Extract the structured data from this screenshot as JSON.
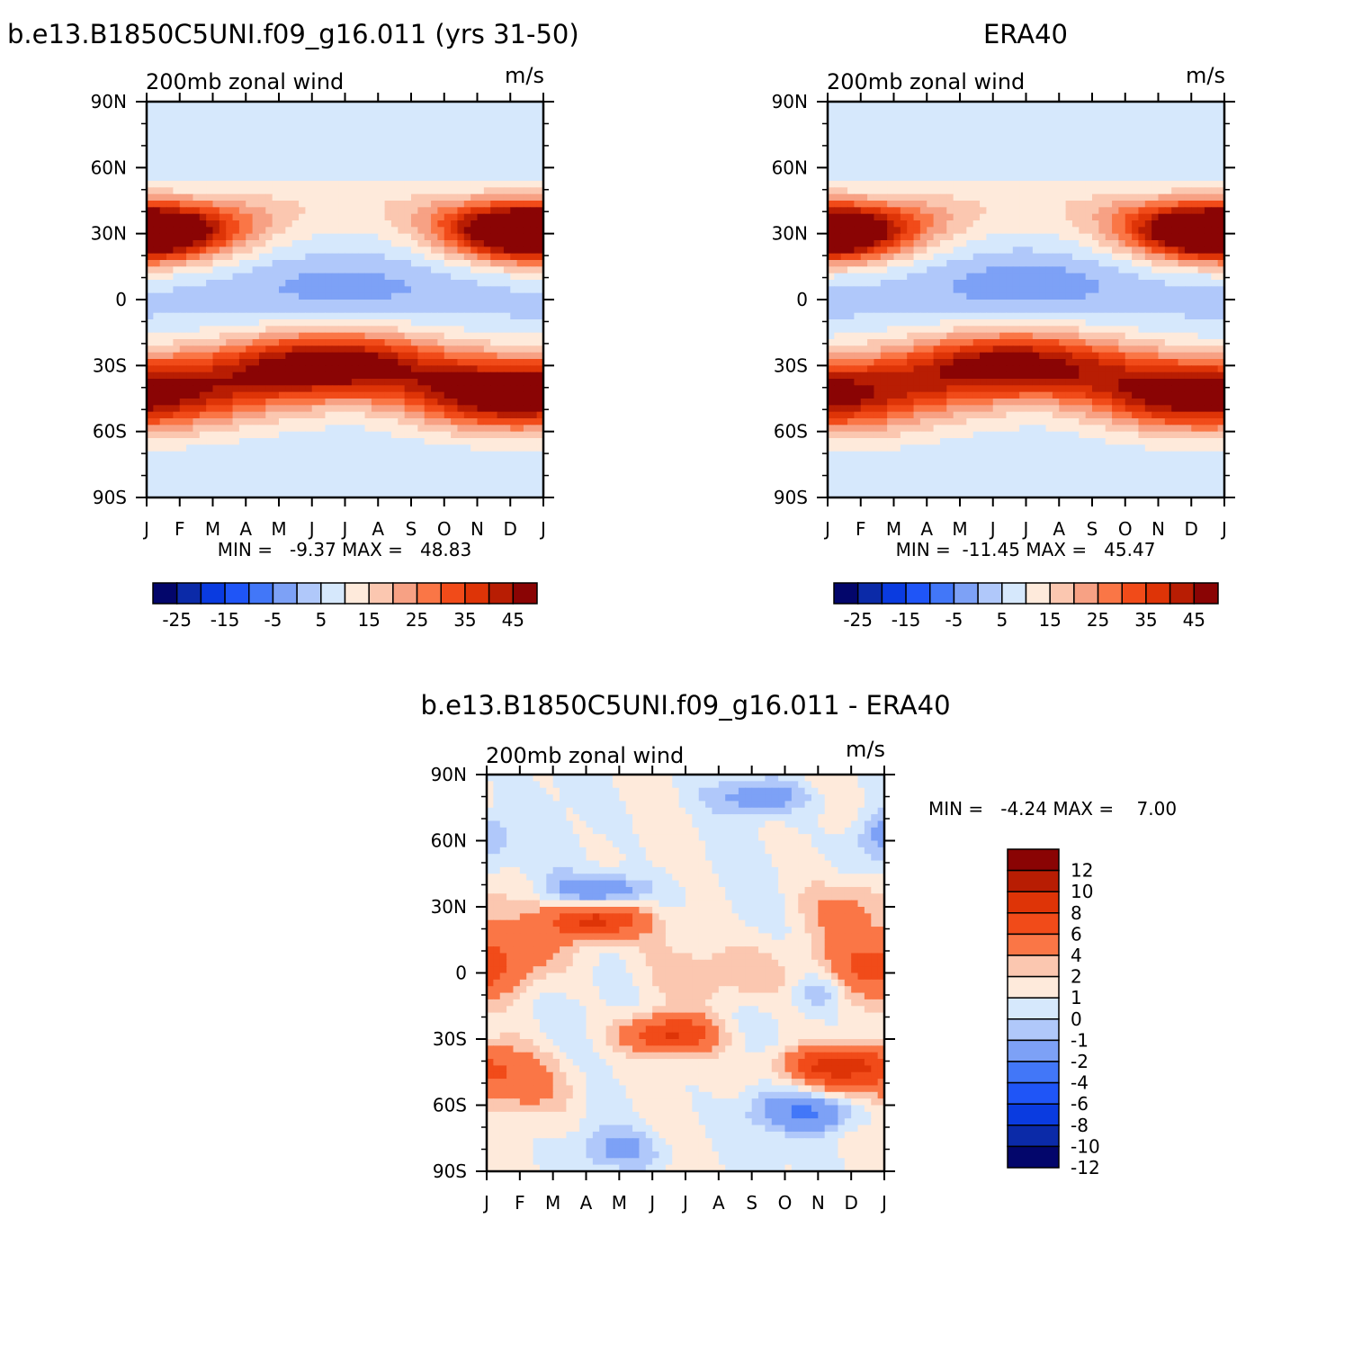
{
  "chart_data": [
    {
      "type": "heatmap",
      "title": "b.e13.B1850C5UNI.f09_g16.011 (yrs 31-50)",
      "subtitle_left": "200mb zonal wind",
      "subtitle_right": "m/s",
      "x_ticks": [
        "J",
        "F",
        "M",
        "A",
        "M",
        "J",
        "J",
        "A",
        "S",
        "O",
        "N",
        "D",
        "J"
      ],
      "y_ticks": [
        "90N",
        "60N",
        "30N",
        "0",
        "30S",
        "60S",
        "90S"
      ],
      "min_max_label": "MIN =   -9.37 MAX =   48.83",
      "stats": {
        "min": -9.37,
        "max": 48.83
      },
      "colorbar_levels": [
        -30,
        -25,
        -20,
        -15,
        -10,
        -5,
        0,
        5,
        10,
        15,
        20,
        25,
        30,
        35,
        40,
        45
      ],
      "colorbar_labels": [
        "-25",
        "-15",
        "-5",
        "5",
        "15",
        "25",
        "35",
        "45"
      ],
      "features": [
        {
          "month": 1.0,
          "lat": 30,
          "value": 48,
          "sx": 1.8,
          "sy": 9
        },
        {
          "month": 12.5,
          "lat": 31,
          "value": 44,
          "sx": 1.6,
          "sy": 9
        },
        {
          "month": 6.5,
          "lat": -29,
          "value": 48,
          "sx": 2.2,
          "sy": 10
        },
        {
          "month": 1.5,
          "lat": -42,
          "value": 34,
          "sx": 2.5,
          "sy": 12
        },
        {
          "month": 11.5,
          "lat": -45,
          "value": 38,
          "sx": 1.8,
          "sy": 10
        },
        {
          "month": 7.0,
          "lat": 4,
          "value": -9,
          "sx": 2.5,
          "sy": 10
        },
        {
          "month": 1.0,
          "lat": -4,
          "value": -3,
          "sx": 1.5,
          "sy": 8
        }
      ]
    },
    {
      "type": "heatmap",
      "title": "ERA40",
      "subtitle_left": "200mb zonal wind",
      "subtitle_right": "m/s",
      "x_ticks": [
        "J",
        "F",
        "M",
        "A",
        "M",
        "J",
        "J",
        "A",
        "S",
        "O",
        "N",
        "D",
        "J"
      ],
      "y_ticks": [
        "90N",
        "60N",
        "30N",
        "0",
        "30S",
        "60S",
        "90S"
      ],
      "min_max_label": "MIN =  -11.45 MAX =   45.47",
      "stats": {
        "min": -11.45,
        "max": 45.47
      },
      "colorbar_levels": [
        -30,
        -25,
        -20,
        -15,
        -10,
        -5,
        0,
        5,
        10,
        15,
        20,
        25,
        30,
        35,
        40,
        45
      ],
      "colorbar_labels": [
        "-25",
        "-15",
        "-5",
        "5",
        "15",
        "25",
        "35",
        "45"
      ],
      "features": [
        {
          "month": 1.0,
          "lat": 30,
          "value": 45,
          "sx": 1.8,
          "sy": 9
        },
        {
          "month": 12.5,
          "lat": 31,
          "value": 42,
          "sx": 1.6,
          "sy": 9
        },
        {
          "month": 6.5,
          "lat": -29,
          "value": 43,
          "sx": 2.3,
          "sy": 10
        },
        {
          "month": 1.5,
          "lat": -45,
          "value": 32,
          "sx": 2.5,
          "sy": 12
        },
        {
          "month": 11.5,
          "lat": -44,
          "value": 34,
          "sx": 1.8,
          "sy": 10
        },
        {
          "month": 7.0,
          "lat": 6,
          "value": -11,
          "sx": 2.3,
          "sy": 10
        },
        {
          "month": 1.0,
          "lat": 0,
          "value": -4,
          "sx": 1.5,
          "sy": 10
        }
      ]
    },
    {
      "type": "heatmap",
      "title": "b.e13.B1850C5UNI.f09_g16.011 - ERA40",
      "subtitle_left": "200mb zonal wind",
      "subtitle_right": "m/s",
      "x_ticks": [
        "J",
        "F",
        "M",
        "A",
        "M",
        "J",
        "J",
        "A",
        "S",
        "O",
        "N",
        "D",
        "J"
      ],
      "y_ticks": [
        "90N",
        "60N",
        "30N",
        "0",
        "30S",
        "60S",
        "90S"
      ],
      "min_max_label": "MIN =   -4.24 MAX =    7.00",
      "stats": {
        "min": -4.24,
        "max": 7.0
      },
      "colorbar_levels": [
        -12,
        -10,
        -8,
        -6,
        -4,
        -2,
        -1,
        0,
        1,
        2,
        4,
        6,
        8,
        10,
        12
      ],
      "colorbar_labels": [
        "12",
        "10",
        "8",
        "6",
        "4",
        "2",
        "1",
        "0",
        "-1",
        "-2",
        "-4",
        "-6",
        "-8",
        "-10",
        "-12"
      ],
      "features": [
        {
          "month": 4.2,
          "lat": 24,
          "value": 7.0,
          "sx": 1.0,
          "sy": 6
        },
        {
          "month": 6.5,
          "lat": -28,
          "value": 6.0,
          "sx": 1.0,
          "sy": 6
        },
        {
          "month": 11.5,
          "lat": -42,
          "value": 6.0,
          "sx": 1.2,
          "sy": 6
        },
        {
          "month": 1.5,
          "lat": 10,
          "value": 3.0,
          "sx": 1.5,
          "sy": 10
        },
        {
          "month": 1.5,
          "lat": -50,
          "value": 3.0,
          "sx": 1.5,
          "sy": 10
        },
        {
          "month": 12.8,
          "lat": 0,
          "value": 3.0,
          "sx": 0.8,
          "sy": 8
        },
        {
          "month": 8.5,
          "lat": 0,
          "value": 2.0,
          "sx": 1.5,
          "sy": 10
        },
        {
          "month": 12.0,
          "lat": 30,
          "value": 2.0,
          "sx": 1.0,
          "sy": 8
        },
        {
          "month": 4.5,
          "lat": 37,
          "value": -4.0,
          "sx": 1.0,
          "sy": 5
        },
        {
          "month": 10.8,
          "lat": -63,
          "value": -4.2,
          "sx": 1.2,
          "sy": 6
        },
        {
          "month": 9.3,
          "lat": 80,
          "value": -3.0,
          "sx": 1.0,
          "sy": 5
        },
        {
          "month": 11.0,
          "lat": -8,
          "value": -2.0,
          "sx": 0.5,
          "sy": 6
        },
        {
          "month": 5.0,
          "lat": -80,
          "value": -2.0,
          "sx": 1.0,
          "sy": 6
        },
        {
          "month": 1.0,
          "lat": 55,
          "value": -1.5,
          "sx": 0.8,
          "sy": 8
        },
        {
          "month": 12.9,
          "lat": 65,
          "value": -2.0,
          "sx": 0.5,
          "sy": 6
        }
      ]
    }
  ]
}
